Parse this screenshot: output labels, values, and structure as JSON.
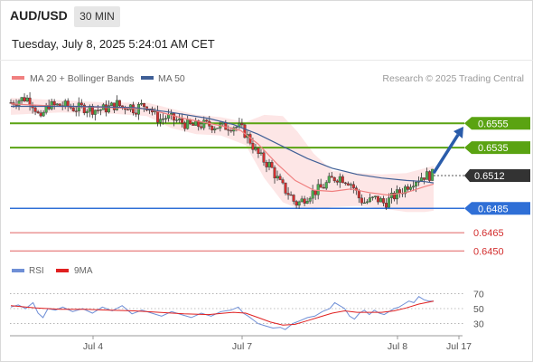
{
  "header": {
    "symbol": "AUD/USD",
    "timeframe": "30 MIN",
    "datetime": "Tuesday, July 8, 2025 5:24:01 AM CET"
  },
  "legend": {
    "ma20_label": "MA 20 + Bollinger Bands",
    "ma50_label": "MA 50",
    "ma20_color": "#f08080",
    "ma50_color": "#3f5f96",
    "credit": "Research © 2025 Trading Central"
  },
  "rsi_legend": {
    "rsi_label": "RSI",
    "ma_label": "9MA",
    "rsi_color": "#6f8fd6",
    "ma_color": "#e02020"
  },
  "colors": {
    "bull": "#4caf50",
    "bear": "#d32f2f",
    "resistance": "#5aa312",
    "support": "#2f6fd6",
    "target": "#e06060",
    "arrow": "#2a5caa",
    "current_bg": "#333333",
    "band_fill": "#fde2e2"
  },
  "chart_data": [
    {
      "type": "candlestick",
      "title": "AUD/USD 30 MIN",
      "x_labels": [
        "Jul 4",
        "Jul 7",
        "Jul 8",
        "Jul 17"
      ],
      "ylim": [
        0.6442,
        0.6582
      ],
      "series": [
        {
          "name": "MA 20 + Bollinger Bands"
        },
        {
          "name": "MA 50"
        }
      ],
      "price_path": [
        [
          0,
          0.6572
        ],
        [
          6,
          0.6574
        ],
        [
          12,
          0.6576
        ],
        [
          16,
          0.6574
        ],
        [
          20,
          0.6567
        ],
        [
          22,
          0.6562
        ],
        [
          24,
          0.6556
        ],
        [
          26,
          0.6563
        ],
        [
          28,
          0.6566
        ],
        [
          30,
          0.6571
        ],
        [
          34,
          0.6569
        ],
        [
          40,
          0.657
        ],
        [
          46,
          0.6569
        ],
        [
          52,
          0.6567
        ],
        [
          58,
          0.6568
        ],
        [
          64,
          0.6567
        ],
        [
          70,
          0.6566
        ],
        [
          76,
          0.6567
        ],
        [
          82,
          0.6569
        ],
        [
          86,
          0.6571
        ],
        [
          90,
          0.6568
        ],
        [
          96,
          0.657
        ],
        [
          100,
          0.6566
        ],
        [
          104,
          0.6569
        ],
        [
          108,
          0.657
        ],
        [
          112,
          0.6569
        ],
        [
          116,
          0.6562
        ],
        [
          120,
          0.6558
        ],
        [
          126,
          0.656
        ],
        [
          132,
          0.6558
        ],
        [
          138,
          0.6556
        ],
        [
          144,
          0.6553
        ],
        [
          150,
          0.6553
        ],
        [
          156,
          0.6554
        ],
        [
          164,
          0.6553
        ],
        [
          172,
          0.6552
        ],
        [
          180,
          0.6553
        ],
        [
          186,
          0.6551
        ],
        [
          190,
          0.6546
        ],
        [
          194,
          0.654
        ],
        [
          198,
          0.6532
        ],
        [
          202,
          0.6527
        ],
        [
          206,
          0.6523
        ],
        [
          210,
          0.652
        ],
        [
          214,
          0.6512
        ],
        [
          218,
          0.6505
        ],
        [
          222,
          0.65
        ],
        [
          226,
          0.6496
        ],
        [
          230,
          0.6489
        ],
        [
          234,
          0.649
        ],
        [
          238,
          0.6494
        ],
        [
          242,
          0.6497
        ],
        [
          246,
          0.6499
        ],
        [
          250,
          0.6501
        ],
        [
          254,
          0.6504
        ],
        [
          258,
          0.6508
        ],
        [
          262,
          0.651
        ],
        [
          266,
          0.6511
        ],
        [
          270,
          0.6509
        ],
        [
          274,
          0.6507
        ],
        [
          278,
          0.6501
        ],
        [
          282,
          0.6493
        ],
        [
          286,
          0.649
        ],
        [
          290,
          0.6491
        ],
        [
          294,
          0.6493
        ],
        [
          298,
          0.6492
        ],
        [
          302,
          0.6489
        ],
        [
          306,
          0.6492
        ],
        [
          310,
          0.6495
        ],
        [
          314,
          0.6498
        ],
        [
          318,
          0.6501
        ],
        [
          322,
          0.6505
        ],
        [
          326,
          0.6508
        ],
        [
          330,
          0.651
        ],
        [
          334,
          0.6512
        ],
        [
          338,
          0.6512
        ],
        [
          342,
          0.6513
        ]
      ],
      "ma20_path": [
        [
          0,
          0.6571
        ],
        [
          40,
          0.6569
        ],
        [
          80,
          0.6568
        ],
        [
          110,
          0.6567
        ],
        [
          140,
          0.6559
        ],
        [
          170,
          0.6553
        ],
        [
          186,
          0.6549
        ],
        [
          200,
          0.6538
        ],
        [
          215,
          0.6522
        ],
        [
          230,
          0.6508
        ],
        [
          245,
          0.65
        ],
        [
          260,
          0.6499
        ],
        [
          275,
          0.6501
        ],
        [
          290,
          0.6498
        ],
        [
          305,
          0.6496
        ],
        [
          320,
          0.6498
        ],
        [
          335,
          0.6503
        ],
        [
          342,
          0.6505
        ]
      ],
      "ma50_path": [
        [
          0,
          0.6569
        ],
        [
          50,
          0.6569
        ],
        [
          100,
          0.6568
        ],
        [
          130,
          0.6564
        ],
        [
          160,
          0.6559
        ],
        [
          180,
          0.6554
        ],
        [
          200,
          0.6546
        ],
        [
          220,
          0.6536
        ],
        [
          240,
          0.6526
        ],
        [
          260,
          0.6518
        ],
        [
          280,
          0.6513
        ],
        [
          300,
          0.651
        ],
        [
          320,
          0.6508
        ],
        [
          335,
          0.6507
        ],
        [
          342,
          0.6506
        ]
      ],
      "band_upper": [
        [
          0,
          0.6576
        ],
        [
          40,
          0.6574
        ],
        [
          80,
          0.6572
        ],
        [
          110,
          0.6572
        ],
        [
          130,
          0.6567
        ],
        [
          150,
          0.6562
        ],
        [
          170,
          0.656
        ],
        [
          190,
          0.6556
        ],
        [
          205,
          0.6562
        ],
        [
          220,
          0.6561
        ],
        [
          232,
          0.6548
        ],
        [
          245,
          0.653
        ],
        [
          260,
          0.6516
        ],
        [
          280,
          0.6514
        ],
        [
          300,
          0.6513
        ],
        [
          320,
          0.6514
        ],
        [
          335,
          0.6518
        ],
        [
          342,
          0.652
        ]
      ],
      "band_lower": [
        [
          0,
          0.6562
        ],
        [
          40,
          0.6564
        ],
        [
          80,
          0.6563
        ],
        [
          110,
          0.6561
        ],
        [
          130,
          0.6551
        ],
        [
          150,
          0.6546
        ],
        [
          170,
          0.6545
        ],
        [
          190,
          0.6537
        ],
        [
          205,
          0.651
        ],
        [
          220,
          0.649
        ],
        [
          232,
          0.6485
        ],
        [
          245,
          0.6484
        ],
        [
          260,
          0.6486
        ],
        [
          280,
          0.6487
        ],
        [
          300,
          0.6485
        ],
        [
          320,
          0.6482
        ],
        [
          335,
          0.6482
        ],
        [
          342,
          0.6483
        ]
      ],
      "levels": [
        {
          "label": "0.6555",
          "value": 0.6555,
          "kind": "resistance"
        },
        {
          "label": "0.6535",
          "value": 0.6535,
          "kind": "resistance"
        },
        {
          "label": "0.6512",
          "value": 0.6512,
          "kind": "current"
        },
        {
          "label": "0.6485",
          "value": 0.6485,
          "kind": "support"
        },
        {
          "label": "0.6465",
          "value": 0.6465,
          "kind": "target"
        },
        {
          "label": "0.6450",
          "value": 0.645,
          "kind": "target"
        }
      ],
      "forecast_arrow": {
        "from": 0.6514,
        "to": 0.655
      }
    },
    {
      "type": "line",
      "title": "RSI",
      "ylim": [
        15,
        85
      ],
      "y_ticks": [
        "70",
        "50",
        "30"
      ],
      "y_tick_values": [
        70,
        50,
        30
      ],
      "series": [
        {
          "name": "RSI",
          "points": [
            [
              0,
              52
            ],
            [
              6,
              55
            ],
            [
              12,
              50
            ],
            [
              18,
              58
            ],
            [
              22,
              44
            ],
            [
              26,
              38
            ],
            [
              30,
              50
            ],
            [
              36,
              48
            ],
            [
              42,
              52
            ],
            [
              50,
              46
            ],
            [
              58,
              50
            ],
            [
              66,
              44
            ],
            [
              74,
              52
            ],
            [
              82,
              47
            ],
            [
              90,
              54
            ],
            [
              98,
              43
            ],
            [
              106,
              48
            ],
            [
              114,
              44
            ],
            [
              122,
              40
            ],
            [
              130,
              46
            ],
            [
              138,
              42
            ],
            [
              146,
              38
            ],
            [
              154,
              44
            ],
            [
              162,
              40
            ],
            [
              170,
              46
            ],
            [
              178,
              48
            ],
            [
              184,
              52
            ],
            [
              188,
              44
            ],
            [
              192,
              40
            ],
            [
              196,
              35
            ],
            [
              200,
              30
            ],
            [
              206,
              27
            ],
            [
              212,
              24
            ],
            [
              218,
              25
            ],
            [
              222,
              22
            ],
            [
              228,
              30
            ],
            [
              234,
              34
            ],
            [
              240,
              38
            ],
            [
              246,
              40
            ],
            [
              252,
              46
            ],
            [
              258,
              50
            ],
            [
              262,
              58
            ],
            [
              266,
              54
            ],
            [
              270,
              50
            ],
            [
              274,
              40
            ],
            [
              278,
              36
            ],
            [
              282,
              44
            ],
            [
              286,
              48
            ],
            [
              290,
              42
            ],
            [
              294,
              48
            ],
            [
              298,
              44
            ],
            [
              302,
              42
            ],
            [
              306,
              46
            ],
            [
              310,
              50
            ],
            [
              314,
              52
            ],
            [
              318,
              56
            ],
            [
              322,
              60
            ],
            [
              326,
              58
            ],
            [
              330,
              66
            ],
            [
              334,
              62
            ],
            [
              338,
              60
            ],
            [
              342,
              60
            ]
          ]
        },
        {
          "name": "9MA",
          "points": [
            [
              0,
              54
            ],
            [
              20,
              51
            ],
            [
              40,
              49
            ],
            [
              60,
              49
            ],
            [
              80,
              48
            ],
            [
              100,
              47
            ],
            [
              120,
              45
            ],
            [
              140,
              43
            ],
            [
              160,
              42
            ],
            [
              180,
              45
            ],
            [
              190,
              44
            ],
            [
              200,
              38
            ],
            [
              210,
              32
            ],
            [
              220,
              28
            ],
            [
              230,
              29
            ],
            [
              240,
              34
            ],
            [
              250,
              39
            ],
            [
              260,
              44
            ],
            [
              270,
              47
            ],
            [
              280,
              45
            ],
            [
              290,
              45
            ],
            [
              300,
              45
            ],
            [
              310,
              47
            ],
            [
              320,
              51
            ],
            [
              330,
              56
            ],
            [
              342,
              60
            ]
          ]
        }
      ]
    }
  ]
}
